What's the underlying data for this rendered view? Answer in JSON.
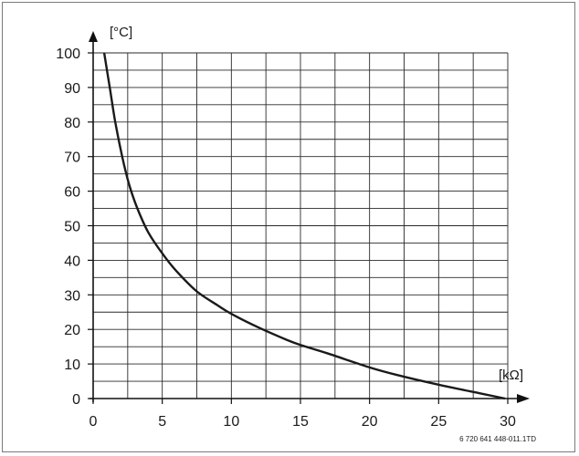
{
  "chart_data": {
    "type": "line",
    "x_unit": "[kΩ]",
    "y_unit": "[°C]",
    "xlim": [
      0,
      30
    ],
    "ylim": [
      0,
      100
    ],
    "x_ticks": [
      0,
      5,
      10,
      15,
      20,
      25,
      30
    ],
    "y_ticks": [
      0,
      10,
      20,
      30,
      40,
      50,
      60,
      70,
      80,
      90,
      100
    ],
    "grid": true,
    "series": [
      {
        "points": [
          [
            0.8,
            100
          ],
          [
            1.2,
            90
          ],
          [
            1.6,
            80
          ],
          [
            2.1,
            70
          ],
          [
            2.6,
            62
          ],
          [
            3.2,
            55
          ],
          [
            4.0,
            48
          ],
          [
            5.0,
            42
          ],
          [
            6.0,
            37
          ],
          [
            7.5,
            31
          ],
          [
            9.0,
            27
          ],
          [
            10.0,
            24.5
          ],
          [
            12.0,
            20.5
          ],
          [
            14.0,
            17
          ],
          [
            15.0,
            15.5
          ],
          [
            17.0,
            13
          ],
          [
            20.0,
            9
          ],
          [
            22.0,
            6.8
          ],
          [
            25.0,
            4
          ],
          [
            28.0,
            1.5
          ],
          [
            29.8,
            0
          ]
        ],
        "color": "#1a1a1a"
      }
    ]
  },
  "figure_id": "6 720 641 448-011.1TD"
}
